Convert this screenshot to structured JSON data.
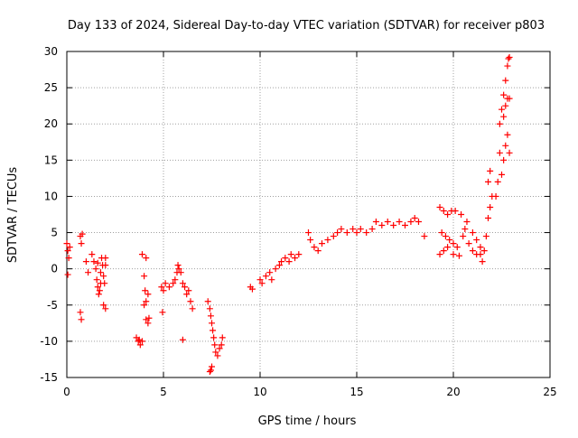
{
  "chart_data": {
    "type": "scatter",
    "title": "Day 133 of 2024, Sidereal Day-to-day VTEC variation (SDTVAR) for receiver p803",
    "xlabel": "GPS time / hours",
    "ylabel": "SDTVAR / TECUs",
    "xlim": [
      0,
      25
    ],
    "ylim": [
      -15,
      30
    ],
    "xticks": [
      0,
      5,
      10,
      15,
      20,
      25
    ],
    "xtick_labels": [
      "0",
      "5",
      "10",
      "15",
      "20",
      "25"
    ],
    "yticks": [
      -15,
      -10,
      -5,
      0,
      5,
      10,
      15,
      20,
      25,
      30
    ],
    "ytick_labels": [
      "-15",
      "-10",
      "-5",
      "0",
      "5",
      "10",
      "15",
      "20",
      "25",
      "30"
    ],
    "grid": true,
    "marker": "+",
    "color": "#ff0000",
    "series": [
      {
        "name": "SDTVAR",
        "points": [
          [
            0.0,
            3.5
          ],
          [
            0.05,
            2.5
          ],
          [
            0.1,
            1.5
          ],
          [
            0.05,
            -0.8
          ],
          [
            0.15,
            3.0
          ],
          [
            0.7,
            4.5
          ],
          [
            0.75,
            3.5
          ],
          [
            0.8,
            4.8
          ],
          [
            0.7,
            -6.0
          ],
          [
            0.75,
            -7.0
          ],
          [
            1.0,
            1.0
          ],
          [
            1.1,
            -0.5
          ],
          [
            1.3,
            2.0
          ],
          [
            1.4,
            1.0
          ],
          [
            1.5,
            0.0
          ],
          [
            1.55,
            -1.5
          ],
          [
            1.6,
            -2.5
          ],
          [
            1.65,
            -3.5
          ],
          [
            1.7,
            -3.0
          ],
          [
            1.75,
            -2.0
          ],
          [
            1.8,
            1.5
          ],
          [
            1.85,
            0.5
          ],
          [
            1.9,
            -1.0
          ],
          [
            1.95,
            -2.0
          ],
          [
            2.0,
            0.5
          ],
          [
            2.0,
            1.5
          ],
          [
            1.9,
            -5.0
          ],
          [
            2.0,
            -5.5
          ],
          [
            1.75,
            -0.5
          ],
          [
            1.6,
            0.8
          ],
          [
            3.6,
            -9.5
          ],
          [
            3.7,
            -10.0
          ],
          [
            3.8,
            -10.5
          ],
          [
            3.9,
            -10.0
          ],
          [
            3.75,
            -9.8
          ],
          [
            3.9,
            2.0
          ],
          [
            4.0,
            -1.0
          ],
          [
            4.05,
            -3.0
          ],
          [
            4.1,
            -4.5
          ],
          [
            4.0,
            -5.0
          ],
          [
            4.1,
            -7.0
          ],
          [
            4.2,
            -7.5
          ],
          [
            4.25,
            -6.8
          ],
          [
            4.1,
            1.5
          ],
          [
            4.2,
            -3.5
          ],
          [
            4.9,
            -2.5
          ],
          [
            5.0,
            -3.0
          ],
          [
            5.1,
            -2.0
          ],
          [
            4.95,
            -6.0
          ],
          [
            5.3,
            -2.5
          ],
          [
            5.5,
            -2.0
          ],
          [
            5.6,
            -1.5
          ],
          [
            5.7,
            -0.5
          ],
          [
            5.8,
            0.0
          ],
          [
            5.9,
            -0.5
          ],
          [
            5.75,
            0.5
          ],
          [
            6.0,
            -2.0
          ],
          [
            6.1,
            -2.5
          ],
          [
            6.2,
            -3.5
          ],
          [
            6.3,
            -3.0
          ],
          [
            6.4,
            -4.5
          ],
          [
            6.5,
            -5.5
          ],
          [
            6.0,
            -9.8
          ],
          [
            7.3,
            -4.5
          ],
          [
            7.4,
            -5.5
          ],
          [
            7.45,
            -6.5
          ],
          [
            7.5,
            -7.5
          ],
          [
            7.55,
            -8.5
          ],
          [
            7.6,
            -9.5
          ],
          [
            7.65,
            -10.5
          ],
          [
            7.7,
            -11.5
          ],
          [
            7.8,
            -12.0
          ],
          [
            7.9,
            -11.0
          ],
          [
            8.0,
            -10.5
          ],
          [
            8.05,
            -9.5
          ],
          [
            7.5,
            -13.5
          ],
          [
            7.45,
            -14.0
          ],
          [
            7.4,
            -14.2
          ],
          [
            9.5,
            -2.5
          ],
          [
            9.6,
            -2.8
          ],
          [
            10.0,
            -1.5
          ],
          [
            10.1,
            -2.0
          ],
          [
            10.3,
            -1.0
          ],
          [
            10.5,
            -0.5
          ],
          [
            10.6,
            -1.5
          ],
          [
            10.8,
            0.0
          ],
          [
            11.0,
            0.5
          ],
          [
            11.1,
            1.0
          ],
          [
            11.3,
            1.5
          ],
          [
            11.5,
            1.0
          ],
          [
            11.6,
            2.0
          ],
          [
            11.8,
            1.5
          ],
          [
            12.0,
            2.0
          ],
          [
            12.5,
            5.0
          ],
          [
            12.6,
            4.0
          ],
          [
            12.8,
            3.0
          ],
          [
            13.0,
            2.5
          ],
          [
            13.2,
            3.5
          ],
          [
            13.5,
            4.0
          ],
          [
            13.8,
            4.5
          ],
          [
            14.0,
            5.0
          ],
          [
            14.2,
            5.5
          ],
          [
            14.5,
            5.0
          ],
          [
            14.8,
            5.5
          ],
          [
            15.0,
            5.0
          ],
          [
            15.2,
            5.5
          ],
          [
            15.5,
            5.0
          ],
          [
            15.8,
            5.5
          ],
          [
            16.0,
            6.5
          ],
          [
            16.3,
            6.0
          ],
          [
            16.6,
            6.5
          ],
          [
            16.9,
            6.0
          ],
          [
            17.2,
            6.5
          ],
          [
            17.5,
            6.0
          ],
          [
            17.8,
            6.5
          ],
          [
            18.0,
            7.0
          ],
          [
            18.2,
            6.5
          ],
          [
            18.5,
            4.5
          ],
          [
            19.3,
            8.5
          ],
          [
            19.5,
            8.0
          ],
          [
            19.7,
            7.5
          ],
          [
            19.9,
            8.0
          ],
          [
            20.1,
            8.0
          ],
          [
            19.4,
            5.0
          ],
          [
            19.6,
            4.5
          ],
          [
            19.8,
            4.0
          ],
          [
            20.0,
            3.5
          ],
          [
            20.2,
            3.0
          ],
          [
            19.3,
            2.0
          ],
          [
            19.5,
            2.5
          ],
          [
            19.7,
            3.0
          ],
          [
            20.0,
            2.0
          ],
          [
            20.3,
            1.8
          ],
          [
            20.5,
            4.5
          ],
          [
            20.6,
            5.5
          ],
          [
            20.8,
            3.5
          ],
          [
            21.0,
            2.5
          ],
          [
            21.2,
            2.0
          ],
          [
            20.4,
            7.5
          ],
          [
            20.7,
            6.5
          ],
          [
            21.0,
            5.0
          ],
          [
            21.2,
            4.0
          ],
          [
            21.4,
            3.0
          ],
          [
            21.4,
            2.0
          ],
          [
            21.5,
            1.0
          ],
          [
            21.6,
            2.5
          ],
          [
            21.7,
            4.5
          ],
          [
            21.8,
            7.0
          ],
          [
            21.8,
            12.0
          ],
          [
            21.9,
            13.5
          ],
          [
            22.0,
            10.0
          ],
          [
            21.9,
            8.5
          ],
          [
            22.2,
            10.0
          ],
          [
            22.3,
            12.0
          ],
          [
            22.4,
            16.0
          ],
          [
            22.4,
            20.0
          ],
          [
            22.5,
            22.0
          ],
          [
            22.6,
            24.0
          ],
          [
            22.7,
            26.0
          ],
          [
            22.8,
            28.0
          ],
          [
            22.85,
            29.0
          ],
          [
            22.9,
            29.2
          ],
          [
            22.5,
            13.0
          ],
          [
            22.6,
            15.0
          ],
          [
            22.7,
            17.0
          ],
          [
            22.8,
            18.5
          ],
          [
            22.9,
            16.0
          ],
          [
            22.6,
            21.0
          ],
          [
            22.7,
            22.5
          ],
          [
            22.8,
            23.5
          ],
          [
            22.9,
            23.5
          ]
        ]
      }
    ]
  }
}
